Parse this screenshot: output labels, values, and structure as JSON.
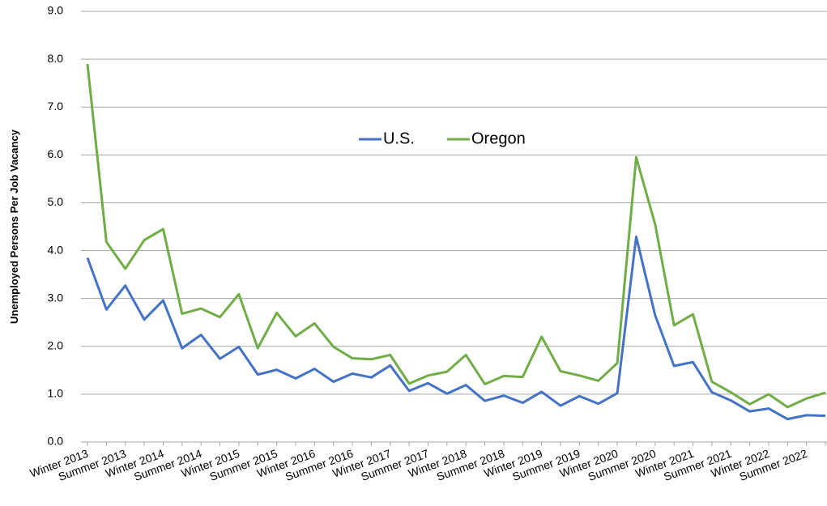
{
  "chart_data": {
    "type": "line",
    "y_axis_label": "Unemployed Persons Per Job Vacancy",
    "categories": [
      "Winter 2013",
      null,
      "Summer 2013",
      null,
      "Winter 2014",
      null,
      "Summer 2014",
      null,
      "Winter 2015",
      null,
      "Summer 2015",
      null,
      "Winter 2016",
      null,
      "Summer 2016",
      null,
      "Winter 2017",
      null,
      "Summer 2017",
      null,
      "Winter 2018",
      null,
      "Summer 2018",
      null,
      "Winter 2019",
      null,
      "Summer 2019",
      null,
      "Winter 2020",
      null,
      "Summer 2020",
      null,
      "Winter 2021",
      null,
      "Summer 2021",
      null,
      "Winter 2022",
      null,
      "Summer 2022",
      null
    ],
    "series": [
      {
        "name": "U.S.",
        "color": "#4472c4",
        "values": [
          3.85,
          2.77,
          3.27,
          2.56,
          2.96,
          1.96,
          2.24,
          1.74,
          1.99,
          1.41,
          1.51,
          1.33,
          1.53,
          1.26,
          1.43,
          1.35,
          1.6,
          1.07,
          1.23,
          1.01,
          1.19,
          0.86,
          0.97,
          0.82,
          1.05,
          0.76,
          0.96,
          0.8,
          1.02,
          4.29,
          2.65,
          1.59,
          1.67,
          1.04,
          0.87,
          0.64,
          0.7,
          0.48,
          0.56,
          0.55
        ]
      },
      {
        "name": "Oregon",
        "color": "#70ad47",
        "values": [
          7.9,
          4.18,
          3.62,
          4.22,
          4.45,
          2.68,
          2.79,
          2.61,
          3.09,
          1.96,
          2.7,
          2.21,
          2.48,
          1.99,
          1.75,
          1.73,
          1.82,
          1.22,
          1.39,
          1.47,
          1.82,
          1.21,
          1.38,
          1.36,
          2.2,
          1.48,
          1.39,
          1.28,
          1.65,
          5.95,
          4.55,
          2.44,
          2.67,
          1.26,
          1.04,
          0.79,
          1.0,
          0.73,
          0.91,
          1.03
        ]
      }
    ],
    "ylim": [
      0,
      9
    ],
    "yticks": [
      {
        "value": 0,
        "label": "0.0"
      },
      {
        "value": 1,
        "label": "1.0"
      },
      {
        "value": 2,
        "label": "2.0"
      },
      {
        "value": 3,
        "label": "3.0"
      },
      {
        "value": 4,
        "label": "4.0"
      },
      {
        "value": 5,
        "label": "5.0"
      },
      {
        "value": 6,
        "label": "6.0"
      },
      {
        "value": 7,
        "label": "7.0"
      },
      {
        "value": 8,
        "label": "8.0"
      },
      {
        "value": 9,
        "label": "9.0"
      }
    ],
    "grid": true
  }
}
